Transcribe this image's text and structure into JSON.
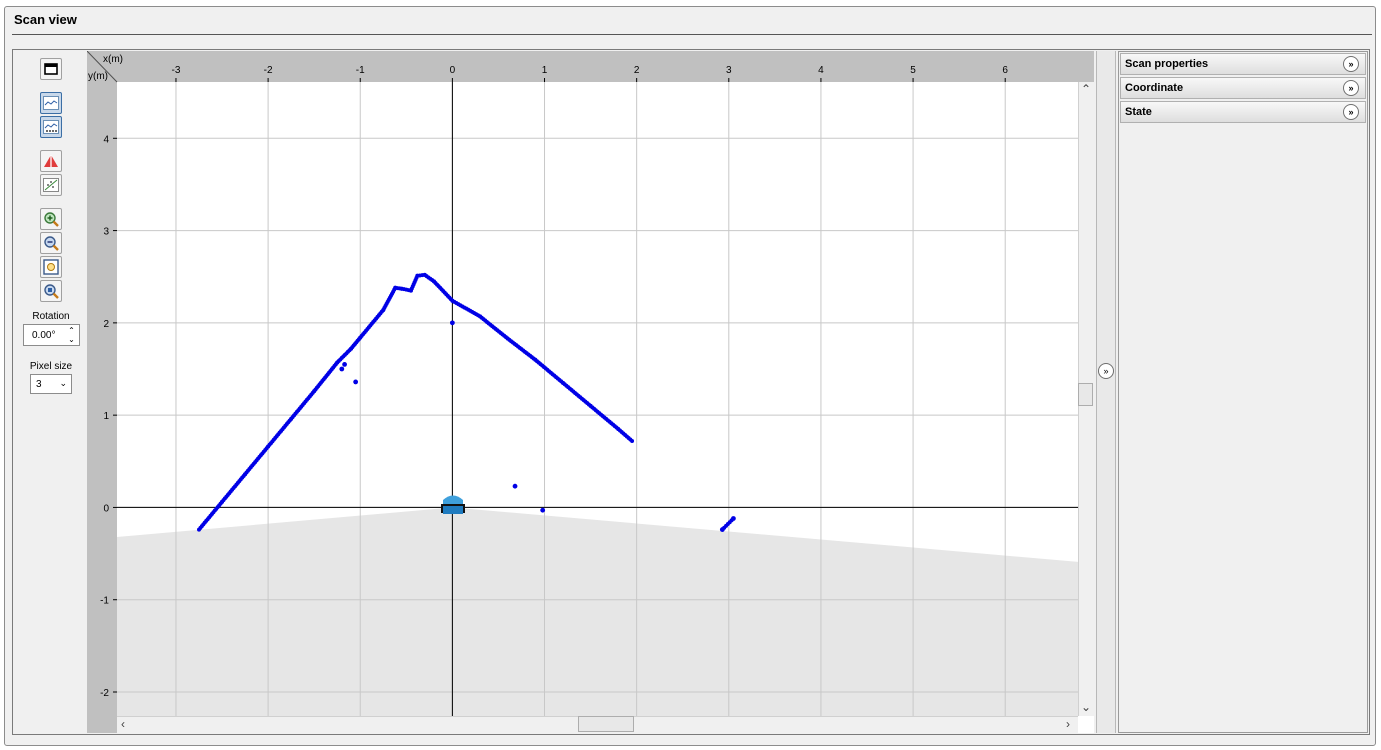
{
  "window": {
    "title": "Scan view"
  },
  "toolbar": {
    "rotation_label": "Rotation",
    "rotation_value": "0.00°",
    "pixel_size_label": "Pixel size",
    "pixel_size_value": "3",
    "icons": [
      "window-toggle-icon",
      "line-chart-icon",
      "scatter-chart-icon",
      "scanner-view-icon",
      "scatter-grid-icon",
      "zoom-in-icon",
      "zoom-out-icon",
      "zoom-fit-icon",
      "zoom-reset-icon"
    ]
  },
  "plot": {
    "x_axis_label": "x(m)",
    "y_axis_label": "y(m)",
    "x_ticks": [
      "-3",
      "-2",
      "-1",
      "0",
      "1",
      "2",
      "3",
      "4",
      "5",
      "6"
    ],
    "y_ticks": [
      "4",
      "3",
      "2",
      "1",
      "0",
      "-1",
      "-2"
    ],
    "point_color": "#0000e6",
    "fov_color": "#e6e6e6",
    "grid_color": "#c8c8c8"
  },
  "right_panel": {
    "sections": [
      "Scan properties",
      "Coordinate",
      "State"
    ]
  },
  "chart_data": {
    "type": "scatter",
    "xlabel": "x(m)",
    "ylabel": "y(m)",
    "xlim": [
      -3.64,
      6.79
    ],
    "ylim": [
      -2.26,
      4.61
    ],
    "grid": true,
    "series": [
      {
        "x": [
          -2.75,
          -2.5,
          -2.25,
          -2.0,
          -1.75,
          -1.5,
          -1.25,
          -1.1,
          -1.0,
          -0.75,
          -0.62,
          -0.55,
          -0.45,
          -0.38,
          -0.3,
          -0.2,
          0.0,
          0.3,
          0.6,
          0.9,
          1.2,
          1.5,
          1.8,
          1.95,
          -1.2,
          -1.17,
          -1.05,
          0.0,
          0.68,
          0.98,
          2.93,
          3.05
        ],
        "y": [
          -0.24,
          0.06,
          0.36,
          0.66,
          0.96,
          1.26,
          1.57,
          1.72,
          1.84,
          2.14,
          2.38,
          2.37,
          2.35,
          2.51,
          2.52,
          2.45,
          2.24,
          2.07,
          1.83,
          1.6,
          1.35,
          1.1,
          0.85,
          0.72,
          1.5,
          1.55,
          1.36,
          2.0,
          0.23,
          -0.03,
          -0.24,
          -0.12
        ]
      }
    ]
  }
}
